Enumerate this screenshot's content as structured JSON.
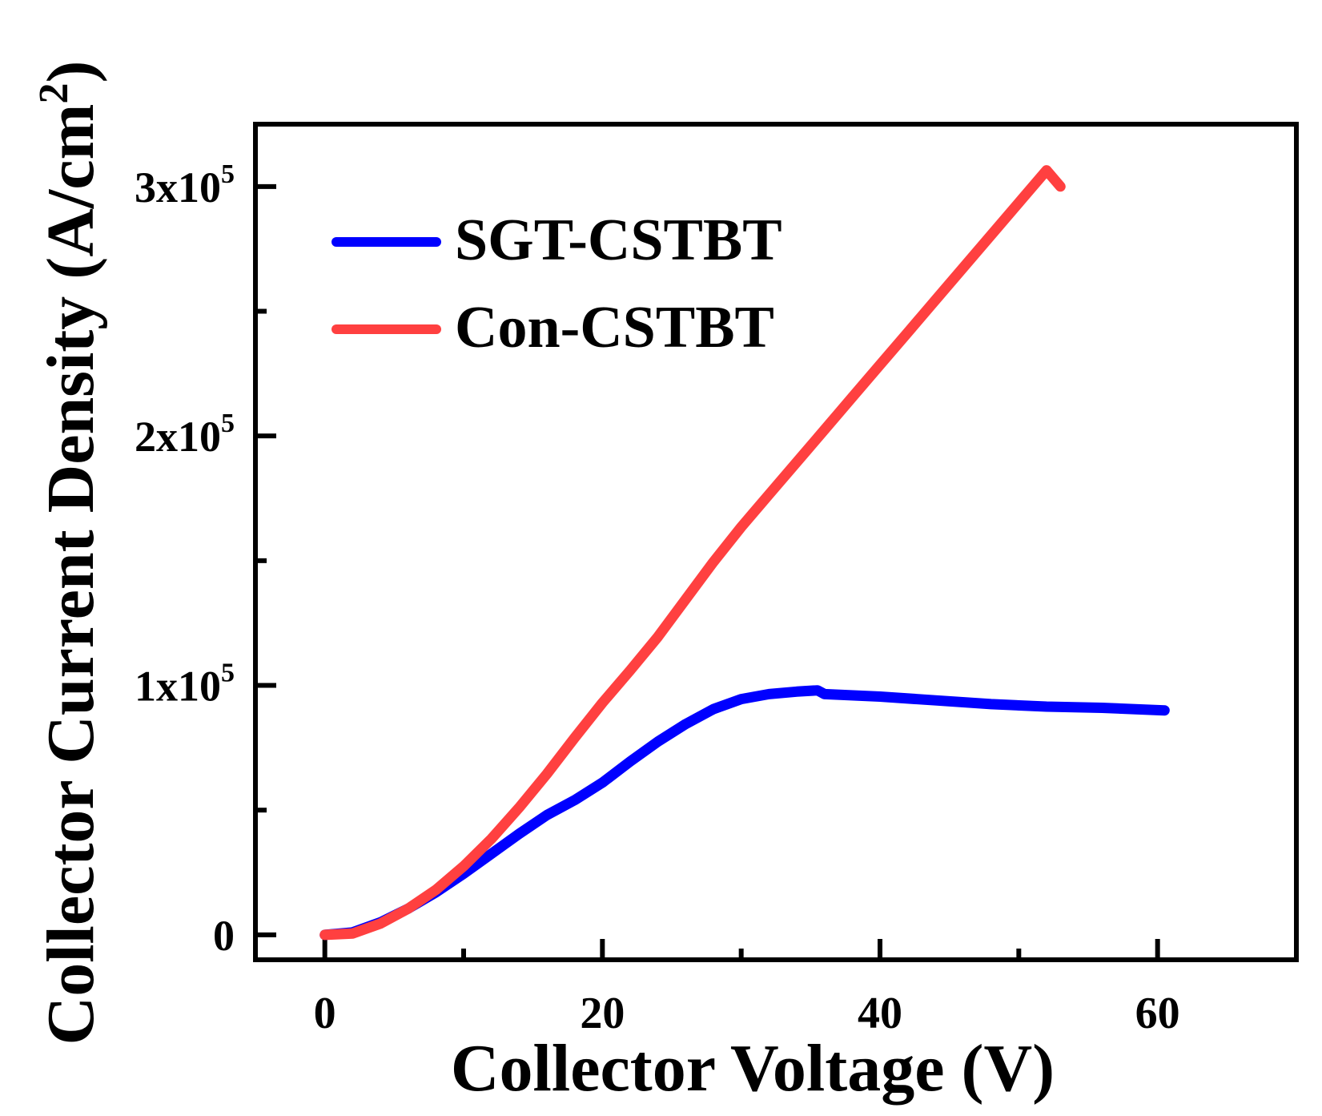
{
  "chart_data": {
    "type": "line",
    "title": "",
    "xlabel": "Collector Voltage (V)",
    "ylabel": {
      "main": "Collector Current Density (A/cm",
      "sup": "2",
      "end": ")"
    },
    "xlim": [
      -5,
      70
    ],
    "ylim": [
      -10000,
      325000
    ],
    "xticks": [
      {
        "value": 0,
        "label": "0"
      },
      {
        "value": 20,
        "label": "20"
      },
      {
        "value": 40,
        "label": "40"
      },
      {
        "value": 60,
        "label": "60"
      }
    ],
    "xminor": [
      10,
      30,
      50
    ],
    "yticks": [
      {
        "value": 0,
        "base": "0",
        "exp": ""
      },
      {
        "value": 100000,
        "base": "1x10",
        "exp": "5"
      },
      {
        "value": 200000,
        "base": "2x10",
        "exp": "5"
      },
      {
        "value": 300000,
        "base": "3x10",
        "exp": "5"
      }
    ],
    "yminor": [
      50000,
      150000,
      250000
    ],
    "legend_position": "top-left",
    "series": [
      {
        "name": "SGT-CSTBT",
        "color": "#0000ff",
        "x": [
          0,
          2,
          4,
          6,
          8,
          10,
          12,
          14,
          16,
          18,
          20,
          22,
          24,
          26,
          28,
          30,
          32,
          34,
          35.5,
          36,
          40,
          44,
          48,
          52,
          56,
          60.5
        ],
        "y": [
          0,
          1000,
          5000,
          10500,
          17000,
          24500,
          32500,
          40500,
          48000,
          54000,
          61000,
          69500,
          77500,
          84500,
          90500,
          94500,
          96500,
          97500,
          98000,
          96500,
          95500,
          94000,
          92500,
          91500,
          91000,
          90000
        ]
      },
      {
        "name": "Con-CSTBT",
        "color": "#ff4040",
        "x": [
          0,
          2,
          4,
          6,
          8,
          10,
          12,
          14,
          16,
          18,
          20,
          22,
          24,
          26,
          28,
          30,
          32,
          34,
          36,
          38,
          40,
          42,
          44,
          46,
          48,
          50,
          52,
          53
        ],
        "y": [
          0,
          500,
          4500,
          10500,
          18000,
          27500,
          38500,
          51000,
          64500,
          79000,
          93000,
          106000,
          119500,
          134500,
          149500,
          163500,
          176500,
          189500,
          202500,
          215500,
          228500,
          241500,
          254500,
          267500,
          280500,
          293500,
          306500,
          300000
        ]
      }
    ]
  }
}
